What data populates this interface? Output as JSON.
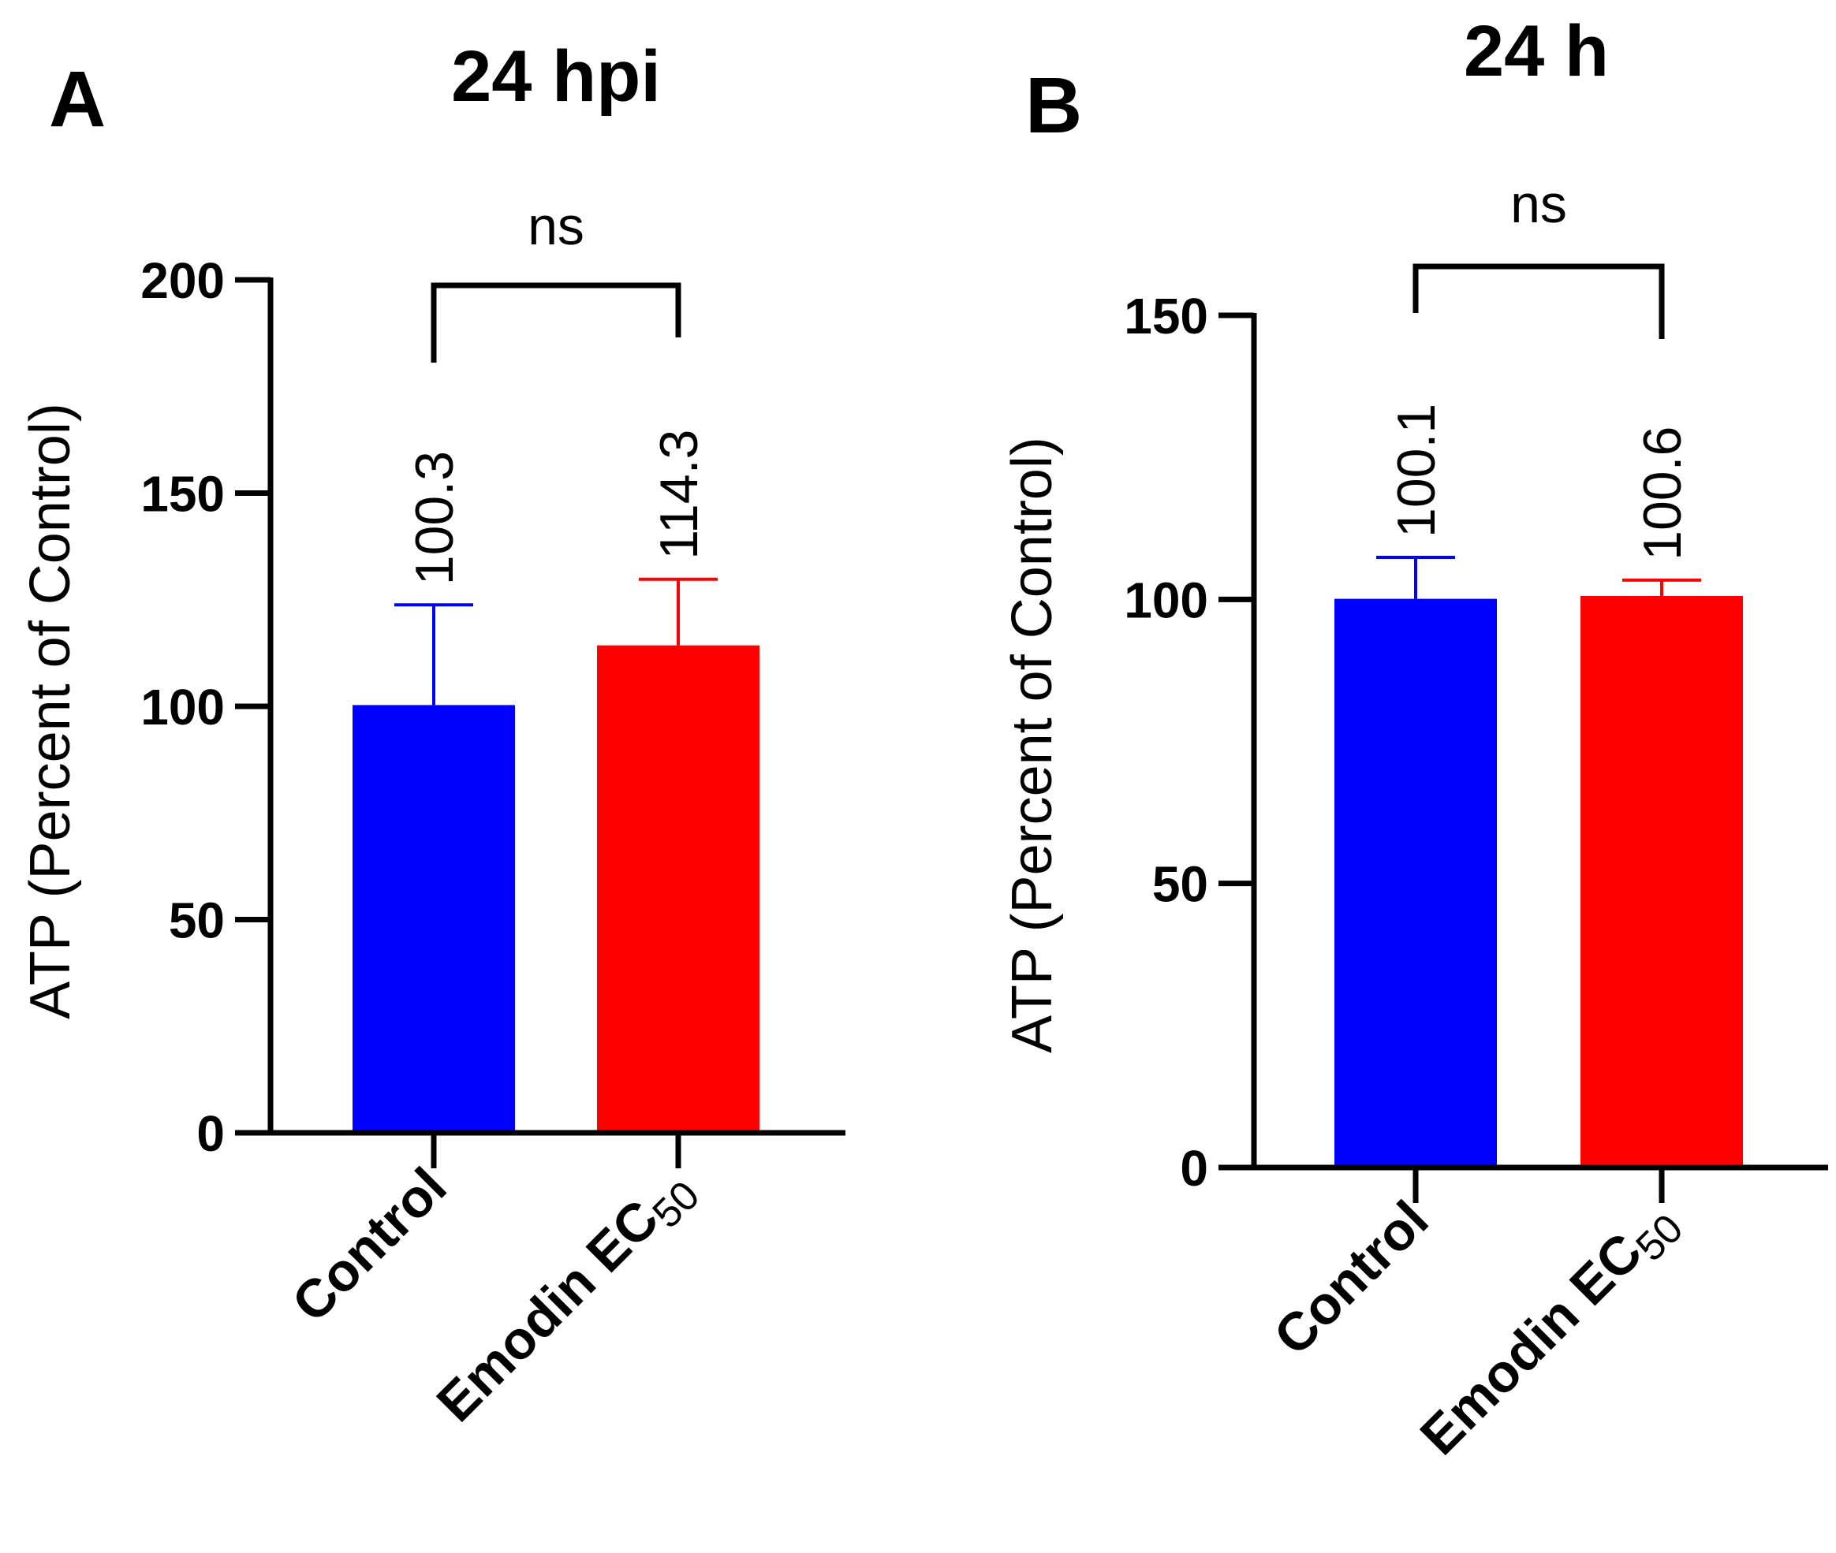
{
  "chart_data": [
    {
      "type": "bar",
      "panel": "A",
      "title": "24 hpi",
      "ylabel": "ATP (Percent of Control)",
      "xlabel": "",
      "ylim": [
        0,
        200
      ],
      "yticks": [
        0,
        50,
        100,
        150,
        200
      ],
      "categories": [
        {
          "main": "Control",
          "sub": ""
        },
        {
          "main": "Emodin EC",
          "sub": "50"
        }
      ],
      "values": [
        100.3,
        114.3
      ],
      "errors": [
        23.5,
        15.5
      ],
      "data_labels": [
        "100.3",
        "114.3"
      ],
      "colors": [
        "#0000ff",
        "#ff0000"
      ],
      "significance": "ns"
    },
    {
      "type": "bar",
      "panel": "B",
      "title": "24 h",
      "ylabel": "ATP (Percent of Control)",
      "xlabel": "",
      "ylim": [
        0,
        150
      ],
      "yticks": [
        0,
        50,
        100,
        150
      ],
      "categories": [
        {
          "main": "Control",
          "sub": ""
        },
        {
          "main": "Emodin EC",
          "sub": "50"
        }
      ],
      "values": [
        100.1,
        100.6
      ],
      "errors": [
        7.3,
        2.8
      ],
      "data_labels": [
        "100.1",
        "100.6"
      ],
      "colors": [
        "#0000ff",
        "#ff0000"
      ],
      "significance": "ns"
    }
  ]
}
